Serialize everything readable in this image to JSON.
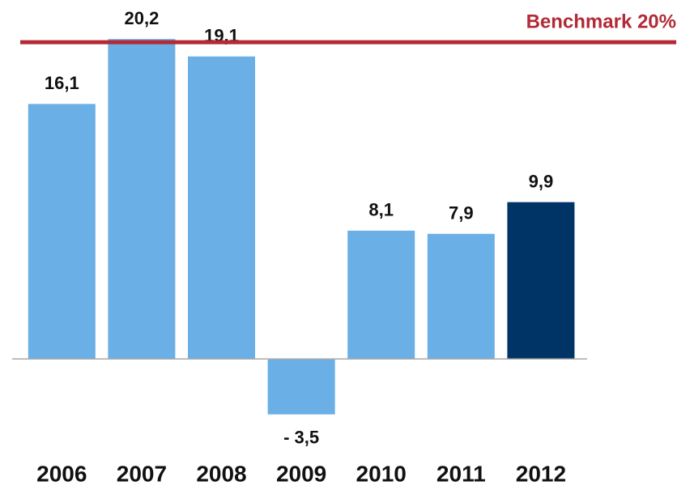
{
  "chart_data": {
    "type": "bar",
    "categories": [
      "2006",
      "2007",
      "2008",
      "2009",
      "2010",
      "2011",
      "2012"
    ],
    "values": [
      16.1,
      20.2,
      19.1,
      -3.5,
      8.1,
      7.9,
      9.9
    ],
    "value_labels": [
      "16,1",
      "20,2",
      "19,1",
      "- 3,5",
      "8,1",
      "7,9",
      "9,9"
    ],
    "colors": [
      "#6aafe6",
      "#6aafe6",
      "#6aafe6",
      "#6aafe6",
      "#6aafe6",
      "#6aafe6",
      "#003366"
    ],
    "ylim": [
      -5,
      22
    ],
    "benchmark": {
      "value": 20,
      "label": "Benchmark 20%",
      "color": "#b22a35"
    }
  }
}
